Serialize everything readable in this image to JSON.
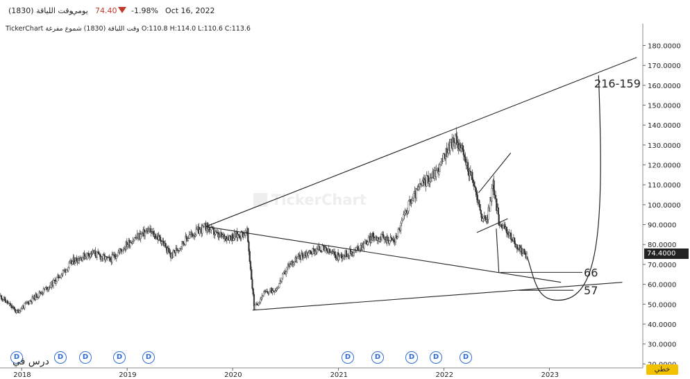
{
  "header": {
    "symbol_name": "وقت اللياقة  (1830)",
    "period": "يومي",
    "last_price": "74.40",
    "change_pct": "-1.98%",
    "date": "Oct 16, 2022",
    "down_color": "#c0392b"
  },
  "ohlc_line": "TickerChart  وقت اللياقة (1830) شموع مفرغة  O:110.8  H:114.0  L:110.6  C:113.6",
  "watermark": "TickerChart",
  "last_price_label": "74.4000",
  "scale_button": "خطي",
  "note_text": "درس في",
  "dividend_markers": [
    "D",
    "D",
    "D",
    "D",
    "D",
    "D",
    "D",
    "D",
    "D",
    "D"
  ],
  "chart_data": {
    "type": "candlestick",
    "x_ticks": [
      "2018",
      "2019",
      "2020",
      "2021",
      "2022",
      "2023"
    ],
    "y_ticks": [
      "20.0000",
      "30.0000",
      "40.0000",
      "50.0000",
      "60.0000",
      "70.0000",
      "80.0000",
      "90.0000",
      "100.0000",
      "110.0000",
      "120.0000",
      "130.0000",
      "140.0000",
      "150.0000",
      "160.0000",
      "170.0000",
      "180.0000"
    ],
    "ylim": [
      18,
      191
    ],
    "xlim": [
      "2017-10-18",
      "2023-11-20"
    ],
    "grid": false,
    "price_path": [
      [
        "2017-10-20",
        54
      ],
      [
        "2017-12-15",
        46
      ],
      [
        "2018-02-01",
        52
      ],
      [
        "2018-04-15",
        60
      ],
      [
        "2018-07-01",
        72
      ],
      [
        "2018-09-01",
        76
      ],
      [
        "2018-11-01",
        72
      ],
      [
        "2019-01-15",
        82
      ],
      [
        "2019-03-15",
        87
      ],
      [
        "2019-05-01",
        82
      ],
      [
        "2019-06-01",
        74
      ],
      [
        "2019-08-01",
        84
      ],
      [
        "2019-10-01",
        89
      ],
      [
        "2019-11-15",
        84
      ],
      [
        "2020-01-01",
        84
      ],
      [
        "2020-02-20",
        86
      ],
      [
        "2020-03-16",
        48
      ],
      [
        "2020-04-15",
        55
      ],
      [
        "2020-06-01",
        58
      ],
      [
        "2020-07-15",
        70
      ],
      [
        "2020-09-01",
        75
      ],
      [
        "2020-11-01",
        78
      ],
      [
        "2021-01-01",
        74
      ],
      [
        "2021-03-01",
        77
      ],
      [
        "2021-05-01",
        84
      ],
      [
        "2021-07-15",
        82
      ],
      [
        "2021-09-01",
        100
      ],
      [
        "2021-10-15",
        110
      ],
      [
        "2021-12-15",
        118
      ],
      [
        "2022-01-20",
        130
      ],
      [
        "2022-02-15",
        133
      ],
      [
        "2022-03-01",
        128
      ],
      [
        "2022-04-15",
        110
      ],
      [
        "2022-05-15",
        92
      ],
      [
        "2022-06-01",
        94
      ],
      [
        "2022-06-20",
        110
      ],
      [
        "2022-07-10",
        92
      ],
      [
        "2022-08-15",
        85
      ],
      [
        "2022-09-15",
        78
      ],
      [
        "2022-10-16",
        74.4
      ]
    ],
    "trendlines": [
      {
        "from": [
          "2019-09-30",
          89
        ],
        "to": [
          "2023-10-30",
          174
        ]
      },
      {
        "from": [
          "2019-09-30",
          89
        ],
        "to": [
          "2023-02-10",
          61
        ]
      },
      {
        "from": [
          "2020-03-10",
          47
        ],
        "to": [
          "2023-09-10",
          61
        ]
      },
      {
        "from": [
          "2022-05-01",
          106
        ],
        "to": [
          "2022-08-20",
          126
        ]
      },
      {
        "from": [
          "2022-04-25",
          86
        ],
        "to": [
          "2022-08-10",
          93
        ]
      },
      {
        "from": [
          "2022-07-01",
          88
        ],
        "to": [
          "2022-07-10",
          66
        ]
      },
      {
        "from": [
          "2022-07-15",
          66
        ],
        "to": [
          "2023-04-25",
          66
        ]
      },
      {
        "from": [
          "2022-09-15",
          57
        ],
        "to": [
          "2023-03-25",
          57
        ]
      }
    ],
    "projection_curve": {
      "start": [
        "2022-10-16",
        74
      ],
      "low": [
        "2023-02-01",
        52
      ],
      "end": [
        "2023-06-20",
        165
      ]
    },
    "annotations": [
      {
        "text": "216-159",
        "x": "2023-06-05",
        "y": 161
      },
      {
        "text": "66",
        "x": "2023-04-30",
        "y": 66
      },
      {
        "text": "57",
        "x": "2023-04-30",
        "y": 57
      }
    ]
  }
}
